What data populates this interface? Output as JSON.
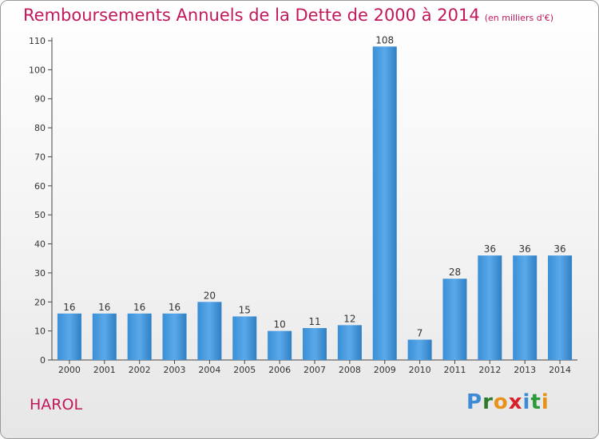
{
  "chart_data": {
    "type": "bar",
    "title": "Remboursements Annuels de la Dette de 2000 à 2014",
    "unit": "(en milliers d'€)",
    "categories": [
      "2000",
      "2001",
      "2002",
      "2003",
      "2004",
      "2005",
      "2006",
      "2007",
      "2008",
      "2009",
      "2010",
      "2011",
      "2012",
      "2013",
      "2014"
    ],
    "values": [
      16,
      16,
      16,
      16,
      20,
      15,
      10,
      11,
      12,
      108,
      7,
      28,
      36,
      36,
      36
    ],
    "ylim": [
      0,
      110
    ],
    "yticks": [
      0,
      10,
      20,
      30,
      40,
      50,
      60,
      70,
      80,
      90,
      100,
      110
    ],
    "bar_color": "#3a8fd8",
    "grid": false,
    "legend": "none"
  },
  "commune": "HAROL",
  "logo": {
    "letters": [
      "P",
      "r",
      "o",
      "x",
      "i",
      "t",
      "i"
    ],
    "colors": [
      "#3d8ad6",
      "#2a7a2a",
      "#e8921a",
      "#d8202a",
      "#3d8ad6",
      "#2a9a3a",
      "#e8921a"
    ]
  }
}
